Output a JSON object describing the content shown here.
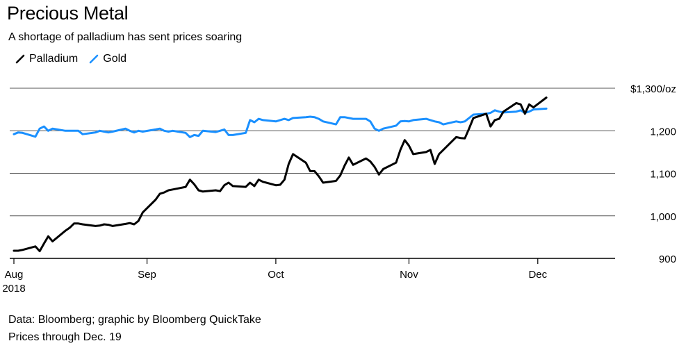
{
  "chart_data": {
    "type": "line",
    "title": "Precious Metal",
    "subtitle": "A shortage of palladium has sent prices soaring",
    "unit_label": "$1,300/oz",
    "ylim": [
      900,
      1300
    ],
    "yticks": [
      {
        "value": 1300,
        "label": "$1,300/oz"
      },
      {
        "value": 1200,
        "label": "1,200"
      },
      {
        "value": 1100,
        "label": "1,100"
      },
      {
        "value": 1000,
        "label": "1,000"
      },
      {
        "value": 900,
        "label": "900"
      }
    ],
    "xlim": [
      "2018-08-01",
      "2018-12-19"
    ],
    "xticks": [
      {
        "date": "2018-08-01",
        "label": "Aug",
        "sublabel": "2018"
      },
      {
        "date": "2018-09-01",
        "label": "Sep",
        "sublabel": ""
      },
      {
        "date": "2018-10-01",
        "label": "Oct",
        "sublabel": ""
      },
      {
        "date": "2018-11-01",
        "label": "Nov",
        "sublabel": ""
      },
      {
        "date": "2018-12-01",
        "label": "Dec",
        "sublabel": ""
      }
    ],
    "grid": true,
    "legend_position": "top-left",
    "series": [
      {
        "name": "Palladium",
        "color": "#000000",
        "points": [
          [
            "2018-08-01",
            918
          ],
          [
            "2018-08-02",
            918
          ],
          [
            "2018-08-03",
            920
          ],
          [
            "2018-08-06",
            928
          ],
          [
            "2018-08-07",
            917
          ],
          [
            "2018-08-08",
            935
          ],
          [
            "2018-08-09",
            952
          ],
          [
            "2018-08-10",
            940
          ],
          [
            "2018-08-13",
            965
          ],
          [
            "2018-08-14",
            972
          ],
          [
            "2018-08-15",
            982
          ],
          [
            "2018-08-16",
            982
          ],
          [
            "2018-08-17",
            980
          ],
          [
            "2018-08-20",
            976
          ],
          [
            "2018-08-21",
            977
          ],
          [
            "2018-08-22",
            980
          ],
          [
            "2018-08-23",
            979
          ],
          [
            "2018-08-24",
            976
          ],
          [
            "2018-08-27",
            981
          ],
          [
            "2018-08-28",
            983
          ],
          [
            "2018-08-29",
            980
          ],
          [
            "2018-08-30",
            988
          ],
          [
            "2018-08-31",
            1008
          ],
          [
            "2018-09-03",
            1038
          ],
          [
            "2018-09-04",
            1052
          ],
          [
            "2018-09-05",
            1055
          ],
          [
            "2018-09-06",
            1060
          ],
          [
            "2018-09-07",
            1062
          ],
          [
            "2018-09-10",
            1068
          ],
          [
            "2018-09-11",
            1085
          ],
          [
            "2018-09-12",
            1074
          ],
          [
            "2018-09-13",
            1060
          ],
          [
            "2018-09-14",
            1057
          ],
          [
            "2018-09-17",
            1060
          ],
          [
            "2018-09-18",
            1058
          ],
          [
            "2018-09-19",
            1072
          ],
          [
            "2018-09-20",
            1078
          ],
          [
            "2018-09-21",
            1070
          ],
          [
            "2018-09-24",
            1068
          ],
          [
            "2018-09-25",
            1078
          ],
          [
            "2018-09-26",
            1070
          ],
          [
            "2018-09-27",
            1085
          ],
          [
            "2018-09-28",
            1080
          ],
          [
            "2018-10-01",
            1072
          ],
          [
            "2018-10-02",
            1073
          ],
          [
            "2018-10-03",
            1085
          ],
          [
            "2018-10-04",
            1122
          ],
          [
            "2018-10-05",
            1145
          ],
          [
            "2018-10-08",
            1125
          ],
          [
            "2018-10-09",
            1105
          ],
          [
            "2018-10-10",
            1105
          ],
          [
            "2018-10-11",
            1093
          ],
          [
            "2018-10-12",
            1078
          ],
          [
            "2018-10-15",
            1082
          ],
          [
            "2018-10-16",
            1095
          ],
          [
            "2018-10-17",
            1118
          ],
          [
            "2018-10-18",
            1137
          ],
          [
            "2018-10-19",
            1120
          ],
          [
            "2018-10-22",
            1135
          ],
          [
            "2018-10-23",
            1128
          ],
          [
            "2018-10-24",
            1115
          ],
          [
            "2018-10-25",
            1097
          ],
          [
            "2018-10-26",
            1110
          ],
          [
            "2018-10-29",
            1125
          ],
          [
            "2018-10-30",
            1155
          ],
          [
            "2018-10-31",
            1178
          ],
          [
            "2018-11-01",
            1165
          ],
          [
            "2018-11-02",
            1145
          ],
          [
            "2018-11-05",
            1150
          ],
          [
            "2018-11-06",
            1155
          ],
          [
            "2018-11-07",
            1122
          ],
          [
            "2018-11-08",
            1145
          ],
          [
            "2018-11-09",
            1155
          ],
          [
            "2018-11-12",
            1185
          ],
          [
            "2018-11-13",
            1183
          ],
          [
            "2018-11-14",
            1182
          ],
          [
            "2018-11-15",
            1205
          ],
          [
            "2018-11-16",
            1230
          ],
          [
            "2018-11-19",
            1240
          ],
          [
            "2018-11-20",
            1210
          ],
          [
            "2018-11-21",
            1225
          ],
          [
            "2018-11-22",
            1228
          ],
          [
            "2018-11-23",
            1245
          ],
          [
            "2018-11-26",
            1265
          ],
          [
            "2018-11-27",
            1262
          ],
          [
            "2018-11-28",
            1240
          ],
          [
            "2018-11-29",
            1262
          ],
          [
            "2018-11-30",
            1255
          ],
          [
            "2018-12-03",
            1278
          ]
        ]
      },
      {
        "name": "Gold",
        "color": "#1a90ff",
        "points": [
          [
            "2018-08-01",
            1192
          ],
          [
            "2018-08-02",
            1196
          ],
          [
            "2018-08-03",
            1195
          ],
          [
            "2018-08-06",
            1186
          ],
          [
            "2018-08-07",
            1205
          ],
          [
            "2018-08-08",
            1210
          ],
          [
            "2018-08-09",
            1200
          ],
          [
            "2018-08-10",
            1205
          ],
          [
            "2018-08-13",
            1200
          ],
          [
            "2018-08-14",
            1200
          ],
          [
            "2018-08-15",
            1200
          ],
          [
            "2018-08-16",
            1200
          ],
          [
            "2018-08-17",
            1192
          ],
          [
            "2018-08-20",
            1196
          ],
          [
            "2018-08-21",
            1200
          ],
          [
            "2018-08-22",
            1198
          ],
          [
            "2018-08-23",
            1196
          ],
          [
            "2018-08-24",
            1198
          ],
          [
            "2018-08-27",
            1205
          ],
          [
            "2018-08-28",
            1200
          ],
          [
            "2018-08-29",
            1196
          ],
          [
            "2018-08-30",
            1200
          ],
          [
            "2018-08-31",
            1198
          ],
          [
            "2018-09-03",
            1203
          ],
          [
            "2018-09-04",
            1205
          ],
          [
            "2018-09-05",
            1200
          ],
          [
            "2018-09-06",
            1198
          ],
          [
            "2018-09-07",
            1200
          ],
          [
            "2018-09-10",
            1195
          ],
          [
            "2018-09-11",
            1185
          ],
          [
            "2018-09-12",
            1190
          ],
          [
            "2018-09-13",
            1188
          ],
          [
            "2018-09-14",
            1200
          ],
          [
            "2018-09-17",
            1197
          ],
          [
            "2018-09-18",
            1200
          ],
          [
            "2018-09-19",
            1203
          ],
          [
            "2018-09-20",
            1190
          ],
          [
            "2018-09-21",
            1190
          ],
          [
            "2018-09-24",
            1195
          ],
          [
            "2018-09-25",
            1225
          ],
          [
            "2018-09-26",
            1220
          ],
          [
            "2018-09-27",
            1228
          ],
          [
            "2018-09-28",
            1225
          ],
          [
            "2018-10-01",
            1222
          ],
          [
            "2018-10-02",
            1225
          ],
          [
            "2018-10-03",
            1228
          ],
          [
            "2018-10-04",
            1225
          ],
          [
            "2018-10-05",
            1230
          ],
          [
            "2018-10-08",
            1232
          ],
          [
            "2018-10-09",
            1233
          ],
          [
            "2018-10-10",
            1232
          ],
          [
            "2018-10-11",
            1228
          ],
          [
            "2018-10-12",
            1222
          ],
          [
            "2018-10-15",
            1215
          ],
          [
            "2018-10-16",
            1232
          ],
          [
            "2018-10-17",
            1232
          ],
          [
            "2018-10-18",
            1230
          ],
          [
            "2018-10-19",
            1228
          ],
          [
            "2018-10-22",
            1228
          ],
          [
            "2018-10-23",
            1222
          ],
          [
            "2018-10-24",
            1205
          ],
          [
            "2018-10-25",
            1200
          ],
          [
            "2018-10-26",
            1205
          ],
          [
            "2018-10-29",
            1212
          ],
          [
            "2018-10-30",
            1222
          ],
          [
            "2018-10-31",
            1223
          ],
          [
            "2018-11-01",
            1222
          ],
          [
            "2018-11-02",
            1225
          ],
          [
            "2018-11-05",
            1228
          ],
          [
            "2018-11-06",
            1225
          ],
          [
            "2018-11-07",
            1222
          ],
          [
            "2018-11-08",
            1220
          ],
          [
            "2018-11-09",
            1215
          ],
          [
            "2018-11-12",
            1222
          ],
          [
            "2018-11-13",
            1220
          ],
          [
            "2018-11-14",
            1222
          ],
          [
            "2018-11-15",
            1230
          ],
          [
            "2018-11-16",
            1238
          ],
          [
            "2018-11-19",
            1240
          ],
          [
            "2018-11-20",
            1242
          ],
          [
            "2018-11-21",
            1248
          ],
          [
            "2018-11-22",
            1245
          ],
          [
            "2018-11-23",
            1243
          ],
          [
            "2018-11-26",
            1245
          ],
          [
            "2018-11-27",
            1248
          ],
          [
            "2018-11-28",
            1242
          ],
          [
            "2018-11-29",
            1245
          ],
          [
            "2018-11-30",
            1250
          ],
          [
            "2018-12-03",
            1252
          ]
        ]
      }
    ],
    "source": "Data: Bloomberg; graphic by Bloomberg QuickTake",
    "note": "Prices through Dec. 19"
  }
}
